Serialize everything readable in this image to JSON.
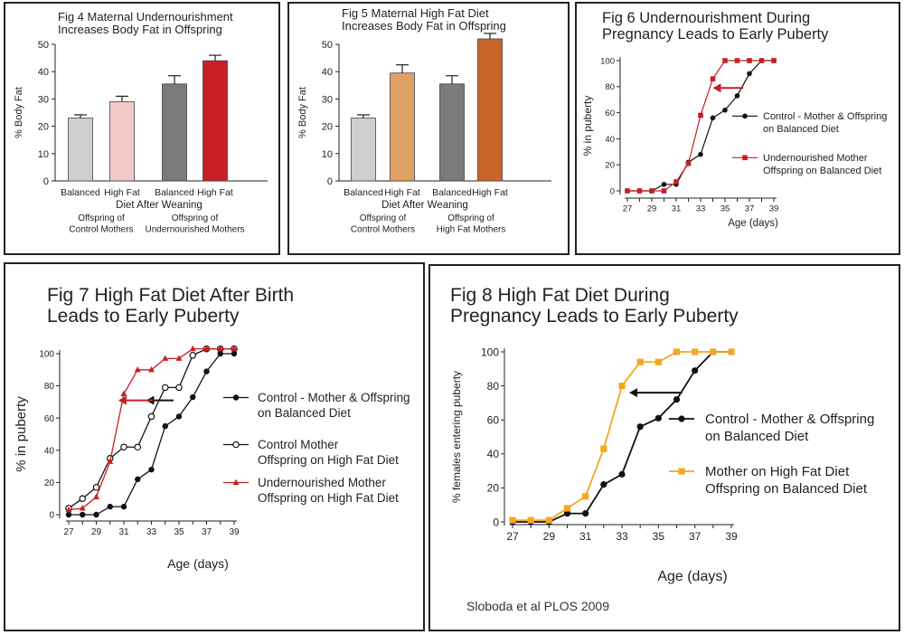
{
  "chart_data": [
    {
      "id": "fig4",
      "type": "bar",
      "title_lines": [
        "Fig 4 Maternal Undernourishment",
        "Increases Body Fat in Offspring"
      ],
      "ylabel": "% Body Fat",
      "xlabel": "Diet After Weaning",
      "ylim": [
        0,
        50
      ],
      "yticks": [
        0,
        10,
        20,
        30,
        40,
        50
      ],
      "categories": [
        "Balanced",
        "High Fat",
        "Balanced",
        "High Fat"
      ],
      "values": [
        23,
        29,
        35.5,
        44
      ],
      "errors": [
        1.2,
        2,
        3,
        2
      ],
      "colors": [
        "#cfcfcf",
        "#f2c9c9",
        "#7a7a7a",
        "#c62026"
      ],
      "groups": [
        {
          "lines": [
            "Offspring of",
            "Control Mothers"
          ]
        },
        {
          "lines": [
            "Offspring of",
            "Undernourished Mothers"
          ]
        }
      ]
    },
    {
      "id": "fig5",
      "type": "bar",
      "title_lines": [
        "Fig 5 Maternal High Fat Diet",
        "Increases Body Fat in Offspring"
      ],
      "ylabel": "% Body Fat",
      "xlabel": "Diet After Weaning",
      "ylim": [
        0,
        50
      ],
      "yticks": [
        0,
        10,
        20,
        30,
        40,
        50
      ],
      "categories": [
        "Balanced",
        "High Fat",
        "Balanced",
        "High Fat"
      ],
      "values": [
        23,
        39.5,
        35.5,
        52
      ],
      "errors": [
        1.2,
        3,
        3,
        2
      ],
      "colors": [
        "#cfcfcf",
        "#e0a263",
        "#7a7a7a",
        "#c8652a"
      ],
      "groups": [
        {
          "lines": [
            "Offspring of",
            "Control Mothers"
          ]
        },
        {
          "lines": [
            "Offspring of",
            "High Fat Mothers"
          ]
        }
      ]
    },
    {
      "id": "fig6",
      "type": "line",
      "title_lines": [
        "Fig 6 Undernourishment During",
        "Pregnancy Leads to Early Puberty"
      ],
      "ylabel": "% in puberty",
      "xlabel": "Age (days)",
      "xlim": [
        27,
        39
      ],
      "ylim": [
        0,
        100
      ],
      "xticks": [
        27,
        29,
        31,
        33,
        35,
        37,
        39
      ],
      "yticks": [
        0,
        20,
        40,
        60,
        80,
        100
      ],
      "x": [
        27,
        28,
        29,
        30,
        31,
        32,
        33,
        34,
        35,
        36,
        37,
        38,
        39
      ],
      "series": [
        {
          "name_lines": [
            "Control - Mother & Offspring",
            "on Balanced Diet"
          ],
          "marker": "filled-circle",
          "color": "#111111",
          "values": [
            0,
            0,
            0,
            5,
            5,
            22,
            28,
            56,
            62,
            73,
            90,
            100,
            100
          ]
        },
        {
          "name_lines": [
            "Undernourished Mother",
            "Offspring on Balanced Diet"
          ],
          "marker": "square",
          "color": "#c62026",
          "values": [
            0,
            0,
            0,
            0,
            7,
            21,
            58,
            86,
            100,
            100,
            100,
            100,
            100
          ]
        }
      ],
      "arrow": {
        "y": 79,
        "from_x": 36.5,
        "to_x": 34,
        "color": "#c62026"
      }
    },
    {
      "id": "fig7",
      "type": "line",
      "title_lines": [
        "Fig 7 High Fat Diet After Birth",
        "Leads to Early Puberty"
      ],
      "ylabel": "% in puberty",
      "xlabel": "Age (days)",
      "xlim": [
        27,
        39
      ],
      "ylim": [
        0,
        100
      ],
      "xticks": [
        27,
        29,
        31,
        33,
        35,
        37,
        39
      ],
      "yticks": [
        0,
        20,
        40,
        60,
        80,
        100
      ],
      "x": [
        27,
        28,
        29,
        30,
        31,
        32,
        33,
        34,
        35,
        36,
        37,
        38,
        39
      ],
      "series": [
        {
          "name_lines": [
            "Control - Mother & Offspring",
            "on Balanced Diet"
          ],
          "marker": "filled-circle",
          "color": "#111111",
          "values": [
            0,
            0,
            0,
            5,
            5,
            22,
            28,
            55,
            61,
            73,
            89,
            100,
            100
          ]
        },
        {
          "name_lines": [
            "Control Mother",
            "Offspring on High Fat Diet"
          ],
          "marker": "open-circle",
          "color": "#111111",
          "values": [
            4,
            10,
            17,
            35,
            42,
            42,
            61,
            79,
            79,
            99,
            103,
            103,
            103
          ]
        },
        {
          "name_lines": [
            "Undernourished Mother",
            "Offspring on High Fat Diet"
          ],
          "marker": "triangle",
          "color": "#c62026",
          "values": [
            3,
            4,
            11,
            33,
            75,
            90,
            90,
            97,
            97,
            103,
            103,
            103,
            103
          ]
        }
      ],
      "arrows": [
        {
          "y": 71,
          "from_x": 34.6,
          "to_x": 32.6,
          "color": "#111111"
        },
        {
          "y": 71,
          "from_x": 33.1,
          "to_x": 30.6,
          "color": "#c62026"
        }
      ]
    },
    {
      "id": "fig8",
      "type": "line",
      "title_lines": [
        "Fig 8 High Fat Diet During",
        "Pregnancy Leads to Early Puberty"
      ],
      "ylabel": "% females entering puberty",
      "xlabel": "Age (days)",
      "xlim": [
        27,
        39
      ],
      "ylim": [
        0,
        100
      ],
      "xticks": [
        27,
        29,
        31,
        33,
        35,
        37,
        39
      ],
      "yticks": [
        0,
        20,
        40,
        60,
        80,
        100
      ],
      "x": [
        27,
        28,
        29,
        30,
        31,
        32,
        33,
        34,
        35,
        36,
        37,
        38,
        39
      ],
      "series": [
        {
          "name_lines": [
            "Control - Mother & Offspring",
            "on Balanced Diet"
          ],
          "marker": "filled-circle",
          "color": "#111111",
          "values": [
            0,
            0,
            0,
            5,
            5,
            22,
            28,
            56,
            61,
            72,
            89,
            100,
            100
          ]
        },
        {
          "name_lines": [
            "Mother on High Fat Diet",
            "Offspring on Balanced Diet"
          ],
          "marker": "square",
          "color": "#f5a623",
          "values": [
            1,
            1,
            1,
            8,
            15,
            43,
            80,
            94,
            94,
            100,
            100,
            100,
            100
          ]
        }
      ],
      "arrow": {
        "y": 76,
        "from_x": 36.3,
        "to_x": 33.4,
        "color": "#111111"
      }
    }
  ],
  "source": "Sloboda et al PLOS 2009"
}
